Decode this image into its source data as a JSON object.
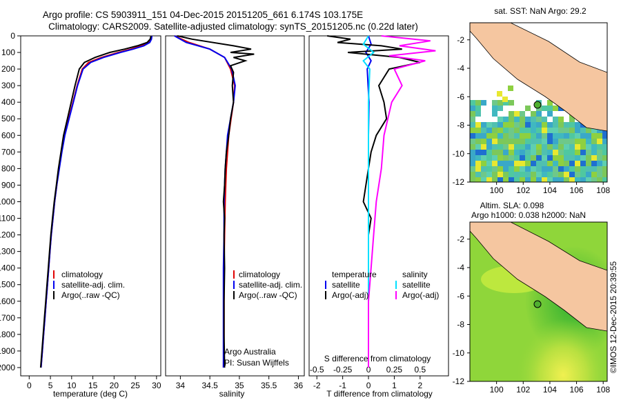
{
  "title_line1": "Argo profile: CS 5903911_151 04-Dec-2015 20151205_661 6.174S 103.175E",
  "title_line2": "Climatology: CARS2009. Satellite-adjusted climatology: synTS_20151205.nc (0.22d later)",
  "credit": "©IMOS 12-Dec-2015 20:39:55",
  "colors": {
    "climatology": "#e00000",
    "satellite": "#0000ee",
    "argo": "#000000",
    "argo_s": "#ff00ff",
    "satellite_s": "#00e0ff",
    "land": "#f5c6a0",
    "sst_bg": "#ffffff"
  },
  "chart_data": [
    {
      "type": "line",
      "panel": "temperature",
      "xlabel": "temperature (deg C)",
      "ylabel": "",
      "xlim": [
        -2,
        31
      ],
      "ylim": [
        2050,
        0
      ],
      "xticks": [
        0,
        5,
        10,
        15,
        20,
        25,
        30
      ],
      "yticks": [
        0,
        100,
        200,
        300,
        400,
        500,
        600,
        700,
        800,
        900,
        1000,
        1100,
        1200,
        1300,
        1400,
        1500,
        1600,
        1700,
        1800,
        1900,
        2000
      ],
      "legend": [
        "climatology",
        "satellite-adj. clim.",
        "Argo(..raw -QC)"
      ],
      "legend_position": "lower-right",
      "series": [
        {
          "name": "climatology",
          "color_key": "climatology",
          "points": [
            [
              28.8,
              0
            ],
            [
              28.6,
              20
            ],
            [
              28.2,
              40
            ],
            [
              26.5,
              60
            ],
            [
              24,
              80
            ],
            [
              21,
              100
            ],
            [
              17,
              130
            ],
            [
              14,
              160
            ],
            [
              12.5,
              200
            ],
            [
              11.3,
              300
            ],
            [
              10.3,
              400
            ],
            [
              9.3,
              500
            ],
            [
              8.3,
              600
            ],
            [
              7.6,
              700
            ],
            [
              7.0,
              800
            ],
            [
              6.5,
              900
            ],
            [
              6.0,
              1000
            ],
            [
              5.6,
              1100
            ],
            [
              5.2,
              1200
            ],
            [
              4.9,
              1300
            ],
            [
              4.6,
              1400
            ],
            [
              4.3,
              1500
            ],
            [
              4.0,
              1600
            ],
            [
              3.7,
              1700
            ],
            [
              3.4,
              1800
            ],
            [
              3.1,
              1900
            ],
            [
              2.8,
              2000
            ]
          ]
        },
        {
          "name": "satellite-adj. clim.",
          "color_key": "satellite",
          "points": [
            [
              28.9,
              0
            ],
            [
              28.8,
              20
            ],
            [
              28.4,
              40
            ],
            [
              27,
              60
            ],
            [
              24.5,
              80
            ],
            [
              21.5,
              100
            ],
            [
              17.5,
              130
            ],
            [
              14.5,
              160
            ],
            [
              12.7,
              200
            ],
            [
              11.4,
              300
            ],
            [
              10.4,
              400
            ],
            [
              9.4,
              500
            ],
            [
              8.4,
              600
            ],
            [
              7.7,
              700
            ],
            [
              7.1,
              800
            ],
            [
              6.5,
              900
            ],
            [
              6.0,
              1000
            ],
            [
              5.6,
              1100
            ],
            [
              5.2,
              1200
            ],
            [
              4.9,
              1300
            ],
            [
              4.6,
              1400
            ],
            [
              4.3,
              1500
            ],
            [
              4.0,
              1600
            ],
            [
              3.7,
              1700
            ],
            [
              3.4,
              1800
            ],
            [
              3.1,
              1900
            ],
            [
              2.8,
              2000
            ]
          ]
        },
        {
          "name": "Argo(..raw -QC)",
          "color_key": "argo",
          "points": [
            [
              28.7,
              0
            ],
            [
              28.5,
              20
            ],
            [
              27.8,
              40
            ],
            [
              25.5,
              60
            ],
            [
              22.5,
              80
            ],
            [
              19,
              100
            ],
            [
              15.5,
              130
            ],
            [
              13,
              160
            ],
            [
              11.8,
              200
            ],
            [
              10.8,
              300
            ],
            [
              9.9,
              400
            ],
            [
              9.0,
              500
            ],
            [
              8.1,
              600
            ],
            [
              7.5,
              700
            ],
            [
              6.9,
              800
            ],
            [
              6.4,
              900
            ],
            [
              5.9,
              1000
            ],
            [
              5.5,
              1100
            ],
            [
              5.1,
              1200
            ],
            [
              4.8,
              1300
            ],
            [
              4.5,
              1400
            ],
            [
              4.2,
              1500
            ],
            [
              3.9,
              1600
            ],
            [
              3.6,
              1700
            ],
            [
              3.3,
              1800
            ],
            [
              3.0,
              1900
            ],
            [
              2.7,
              2000
            ]
          ]
        }
      ]
    },
    {
      "type": "line",
      "panel": "salinity",
      "xlabel": "salinity",
      "xlim": [
        33.75,
        36.1
      ],
      "ylim": [
        2050,
        0
      ],
      "xticks": [
        34,
        34.5,
        35,
        35.5,
        36
      ],
      "legend": [
        "climatology",
        "satellite-adj. clim.",
        "Argo(..raw -QC)"
      ],
      "legend_position": "lower-right",
      "annotations": [
        "Argo Australia",
        "PI: Susan Wijffels"
      ],
      "series": [
        {
          "name": "climatology",
          "color_key": "climatology",
          "points": [
            [
              33.9,
              0
            ],
            [
              34.15,
              40
            ],
            [
              34.5,
              80
            ],
            [
              34.75,
              130
            ],
            [
              34.85,
              200
            ],
            [
              34.92,
              300
            ],
            [
              34.9,
              400
            ],
            [
              34.86,
              500
            ],
            [
              34.82,
              600
            ],
            [
              34.8,
              700
            ],
            [
              34.78,
              800
            ],
            [
              34.77,
              900
            ],
            [
              34.76,
              1000
            ],
            [
              34.75,
              1200
            ],
            [
              34.74,
              1400
            ],
            [
              34.74,
              1600
            ],
            [
              34.74,
              1800
            ],
            [
              34.73,
              2000
            ]
          ]
        },
        {
          "name": "satellite-adj. clim.",
          "color_key": "satellite",
          "points": [
            [
              33.9,
              0
            ],
            [
              34.1,
              40
            ],
            [
              34.5,
              80
            ],
            [
              34.75,
              130
            ],
            [
              34.87,
              200
            ],
            [
              34.93,
              300
            ],
            [
              34.9,
              400
            ],
            [
              34.85,
              500
            ],
            [
              34.8,
              600
            ],
            [
              34.78,
              700
            ],
            [
              34.76,
              800
            ],
            [
              34.75,
              900
            ],
            [
              34.74,
              1000
            ],
            [
              34.74,
              1200
            ],
            [
              34.73,
              1400
            ],
            [
              34.73,
              1600
            ],
            [
              34.73,
              1800
            ],
            [
              34.73,
              2000
            ]
          ]
        },
        {
          "name": "Argo(..raw -QC)",
          "color_key": "argo",
          "points": [
            [
              33.95,
              0
            ],
            [
              34.2,
              20
            ],
            [
              34.9,
              60
            ],
            [
              35.2,
              80
            ],
            [
              34.85,
              100
            ],
            [
              35.25,
              110
            ],
            [
              34.9,
              130
            ],
            [
              35.1,
              150
            ],
            [
              34.85,
              180
            ],
            [
              34.9,
              220
            ],
            [
              34.88,
              300
            ],
            [
              34.9,
              400
            ],
            [
              34.85,
              500
            ],
            [
              34.82,
              600
            ],
            [
              34.78,
              700
            ],
            [
              34.76,
              800
            ],
            [
              34.75,
              900
            ],
            [
              34.73,
              1000
            ],
            [
              34.75,
              1100
            ],
            [
              34.74,
              1200
            ],
            [
              34.75,
              1400
            ],
            [
              34.74,
              1600
            ],
            [
              34.74,
              1800
            ],
            [
              34.75,
              2000
            ]
          ]
        }
      ]
    },
    {
      "type": "line",
      "panel": "differences",
      "xlabel": "T difference from climatology",
      "xlabel_top": "S difference from climatology",
      "xlim": [
        -2.3,
        3.1
      ],
      "ylim": [
        2050,
        0
      ],
      "xticks_bottom": [
        -2,
        -1,
        0,
        1,
        2
      ],
      "xticks_top": [
        -0.5,
        -0.25,
        0,
        0.25,
        0.5
      ],
      "legend": {
        "temperature": [
          "satellite",
          "Argo(-adj)"
        ],
        "salinity": [
          "satellite",
          "Argo(-adj)"
        ]
      },
      "legend_position": "lower-center",
      "series": [
        {
          "name": "T satellite",
          "color_key": "satellite",
          "points": [
            [
              0,
              0
            ],
            [
              0.1,
              50
            ],
            [
              -0.1,
              100
            ],
            [
              0.1,
              150
            ],
            [
              -0.05,
              200
            ],
            [
              0.02,
              400
            ],
            [
              0,
              600
            ],
            [
              0,
              800
            ],
            [
              0,
              1000
            ],
            [
              0,
              1500
            ],
            [
              0,
              2000
            ]
          ]
        },
        {
          "name": "T Argo(-adj)",
          "color_key": "argo",
          "points": [
            [
              -1.6,
              0
            ],
            [
              -0.7,
              20
            ],
            [
              -1.2,
              40
            ],
            [
              0.5,
              60
            ],
            [
              1.3,
              80
            ],
            [
              -0.8,
              100
            ],
            [
              1.2,
              130
            ],
            [
              2,
              160
            ],
            [
              0.8,
              200
            ],
            [
              0.6,
              250
            ],
            [
              0.4,
              300
            ],
            [
              0.6,
              400
            ],
            [
              0.7,
              500
            ],
            [
              0.3,
              600
            ],
            [
              0.1,
              700
            ],
            [
              0,
              800
            ],
            [
              -0.1,
              900
            ],
            [
              -0.2,
              1000
            ],
            [
              0.1,
              1100
            ],
            [
              0,
              1200
            ],
            [
              0,
              1500
            ],
            [
              0,
              2000
            ]
          ]
        },
        {
          "name": "S satellite",
          "color_key": "satellite_s",
          "points": [
            [
              0,
              0
            ],
            [
              -0.2,
              50
            ],
            [
              0.2,
              100
            ],
            [
              -0.2,
              150
            ],
            [
              0.05,
              200
            ],
            [
              0,
              400
            ],
            [
              0,
              800
            ],
            [
              0,
              1200
            ],
            [
              0,
              2000
            ]
          ]
        },
        {
          "name": "S Argo(-adj)",
          "color_key": "argo_s",
          "points": [
            [
              0.5,
              0
            ],
            [
              2.4,
              30
            ],
            [
              1.2,
              60
            ],
            [
              2.6,
              90
            ],
            [
              0.8,
              120
            ],
            [
              2.2,
              150
            ],
            [
              1,
              200
            ],
            [
              1.3,
              300
            ],
            [
              0.9,
              400
            ],
            [
              0.6,
              600
            ],
            [
              0.5,
              800
            ],
            [
              0.3,
              1000
            ],
            [
              0.2,
              1200
            ],
            [
              0.1,
              1400
            ],
            [
              0,
              1600
            ],
            [
              0,
              2000
            ]
          ]
        }
      ]
    },
    {
      "type": "heatmap",
      "panel": "sst-map",
      "title": "sat. SST: NaN Argo: 29.2",
      "xlim": [
        98,
        108.3
      ],
      "ylim": [
        -12,
        -0.8
      ],
      "xticks": [
        100,
        102,
        104,
        106,
        108
      ],
      "yticks": [
        -12,
        -10,
        -8,
        -6,
        -4,
        -2
      ],
      "marker": {
        "lon": 103.175,
        "lat": -6.174
      }
    },
    {
      "type": "heatmap",
      "panel": "sla-map",
      "title": "Altim. SLA: 0.098",
      "subtitle": "Argo h1000: 0.038 h2000: NaN",
      "xlim": [
        98,
        108.3
      ],
      "ylim": [
        -12,
        -0.8
      ],
      "xticks": [
        100,
        102,
        104,
        106,
        108
      ],
      "yticks": [
        -12,
        -10,
        -8,
        -6,
        -4,
        -2
      ],
      "marker": {
        "lon": 103.175,
        "lat": -6.174
      }
    }
  ]
}
